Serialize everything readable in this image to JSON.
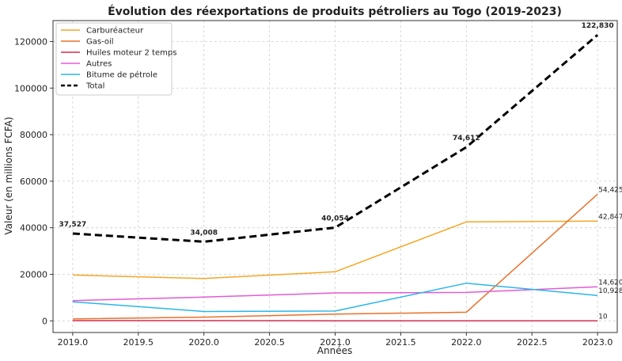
{
  "chart_data": {
    "type": "line",
    "title": "Évolution des réexportations de produits pétroliers au Togo (2019-2023)",
    "xlabel": "Années",
    "ylabel": "Valeur (en millions FCFA)",
    "x": [
      2019,
      2020,
      2021,
      2022,
      2023
    ],
    "xlim": [
      2018.85,
      2023.15
    ],
    "ylim": [
      -5000,
      129000
    ],
    "xticks": [
      2019.0,
      2019.5,
      2020.0,
      2020.5,
      2021.0,
      2021.5,
      2022.0,
      2022.5,
      2023.0
    ],
    "xtick_labels": [
      "2019.0",
      "2019.5",
      "2020.0",
      "2020.5",
      "2021.0",
      "2021.5",
      "2022.0",
      "2022.5",
      "2023.0"
    ],
    "yticks": [
      0,
      20000,
      40000,
      60000,
      80000,
      100000,
      120000
    ],
    "ytick_labels": [
      "0",
      "20000",
      "40000",
      "60000",
      "80000",
      "100000",
      "120000"
    ],
    "grid": true,
    "legend_position": "top-left",
    "series": [
      {
        "name": "Carburéacteur",
        "color": "#f5a623",
        "style": "solid",
        "values": [
          19700,
          18200,
          21100,
          42500,
          42847
        ]
      },
      {
        "name": "Gas-oil",
        "color": "#e8702a",
        "style": "solid",
        "values": [
          800,
          1600,
          2900,
          3700,
          54425
        ]
      },
      {
        "name": "Huiles moteur 2 temps",
        "color": "#d62d4e",
        "style": "solid",
        "values": [
          100,
          100,
          50,
          30,
          10
        ]
      },
      {
        "name": "Autres",
        "color": "#e35ad6",
        "style": "solid",
        "values": [
          8700,
          10200,
          12000,
          12200,
          14620
        ]
      },
      {
        "name": "Bitume de pétrole",
        "color": "#29b6e8",
        "style": "solid",
        "values": [
          8200,
          4000,
          4200,
          16200,
          10928
        ]
      },
      {
        "name": "Total",
        "color": "#000000",
        "style": "dashed",
        "values": [
          37527,
          34008,
          40054,
          74612,
          122830
        ]
      }
    ],
    "total_labels": [
      "37,527",
      "34,008",
      "40,054",
      "74,612",
      "122,830"
    ],
    "end_labels": [
      {
        "series": "Gas-oil",
        "text": "54,425",
        "value": 54425
      },
      {
        "series": "Carburéacteur",
        "text": "42,847",
        "value": 42847
      },
      {
        "series": "Autres",
        "text": "14,620",
        "value": 14620
      },
      {
        "series": "Bitume de pétrole",
        "text": "10,928",
        "value": 10928
      },
      {
        "series": "Huiles moteur 2 temps",
        "text": "10",
        "value": 10
      }
    ]
  }
}
